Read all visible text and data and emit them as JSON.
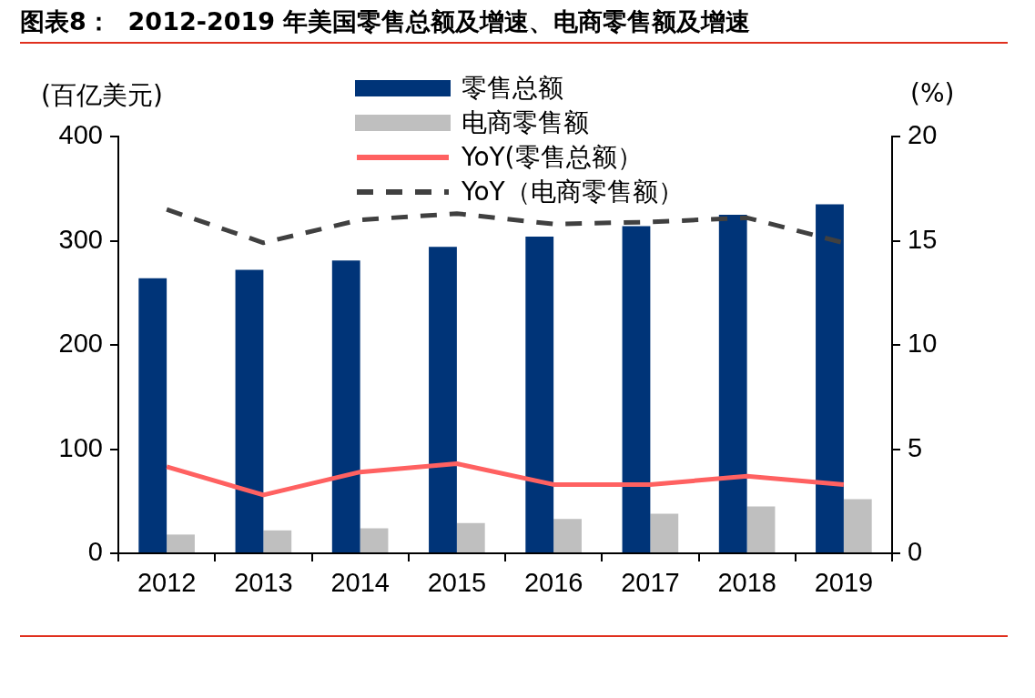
{
  "chart_data": {
    "type": "bar",
    "title": "图表8：  2012-2019 年美国零售总额及增速、电商零售额及增速",
    "ylabel": "(百亿美元)",
    "y2label": "(%)",
    "categories": [
      "2012",
      "2013",
      "2014",
      "2015",
      "2016",
      "2017",
      "2018",
      "2019"
    ],
    "series": [
      {
        "name": "零售总额",
        "color": "#003478",
        "values": [
          264,
          272,
          281,
          294,
          304,
          314,
          325,
          335
        ]
      },
      {
        "name": "电商零售额",
        "color": "#bfbfbf",
        "values": [
          18,
          22,
          24,
          29,
          33,
          38,
          45,
          52
        ]
      },
      {
        "type": "line",
        "name": "YoY(零售总额）",
        "color": "#ff6161",
        "axis": "y2",
        "line_style": "solid",
        "values": [
          4.15,
          2.8,
          3.9,
          4.3,
          3.3,
          3.3,
          3.7,
          3.3
        ]
      },
      {
        "type": "line",
        "name": "YoY（电商零售额）",
        "color": "#404040",
        "axis": "y2",
        "line_style": "dashed",
        "values": [
          16.5,
          14.9,
          16.0,
          16.3,
          15.8,
          15.9,
          16.1,
          14.9
        ]
      }
    ],
    "ylim": [
      0,
      400
    ],
    "yticks": [
      0,
      100,
      200,
      300,
      400
    ],
    "y2lim": [
      0,
      20
    ],
    "y2ticks": [
      0,
      5,
      10,
      15,
      20
    ],
    "marker": "none",
    "legend": "top"
  }
}
